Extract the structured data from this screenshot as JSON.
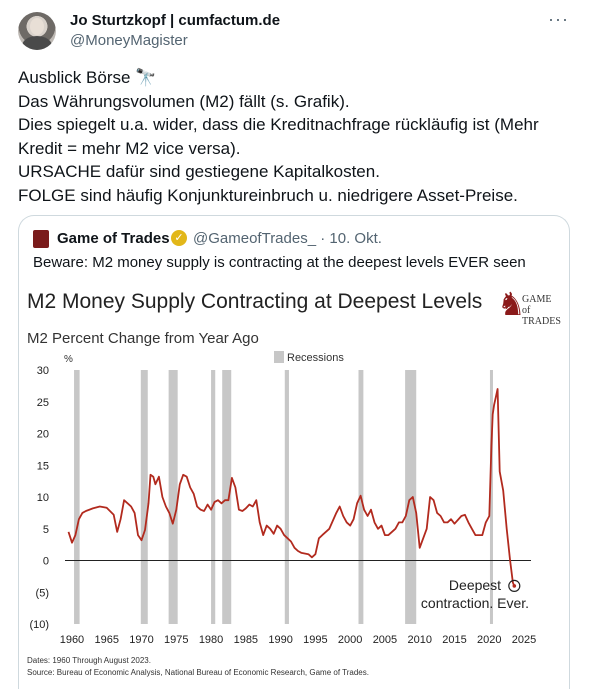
{
  "tweet": {
    "author_name": "Jo Sturtzkopf | cumfactum.de",
    "author_handle": "@MoneyMagister",
    "more_label": "···",
    "lines": [
      "Ausblick Börse 🔭",
      "Das Währungsvolumen (M2) fällt (s. Grafik).",
      "Dies spiegelt u.a. wider, dass die Kreditnachfrage rückläufig ist (Mehr",
      "Kredit = mehr M2 vice versa).",
      "URSACHE dafür sind gestiegene Kapitalkosten.",
      "FOLGE sind häufig Konjunktureinbruch u. niedrigere Asset-Preise."
    ]
  },
  "quote": {
    "name": "Game of Trades",
    "badge": "✓",
    "handle_date": "@GameofTrades_ · 10. Okt.",
    "text": "Beware: M2 money supply is contracting at the deepest levels EVER seen"
  },
  "chart_data": {
    "type": "line",
    "title": "M2 Money Supply Contracting at Deepest Levels",
    "subtitle": "M2 Percent Change from Year Ago",
    "unit_label": "%",
    "legend": "Recessions",
    "logo_text": [
      "GAME of",
      "TRADES"
    ],
    "annotation": [
      "Deepest",
      "contraction. Ever."
    ],
    "xlim": [
      1959,
      2026
    ],
    "ylim": [
      -10,
      30
    ],
    "x_ticks": [
      1960,
      1965,
      1970,
      1975,
      1980,
      1985,
      1990,
      1995,
      2000,
      2005,
      2010,
      2015,
      2020,
      2025
    ],
    "y_ticks": [
      {
        "value": 30,
        "label": "30"
      },
      {
        "value": 25,
        "label": "25"
      },
      {
        "value": 20,
        "label": "20"
      },
      {
        "value": 15,
        "label": "15"
      },
      {
        "value": 10,
        "label": "10"
      },
      {
        "value": 5,
        "label": "5"
      },
      {
        "value": 0,
        "label": "0"
      },
      {
        "value": -5,
        "label": "(5)"
      },
      {
        "value": -10,
        "label": "(10)"
      }
    ],
    "recessions": [
      [
        1960.3,
        1961.1
      ],
      [
        1969.9,
        1970.9
      ],
      [
        1973.9,
        1975.2
      ],
      [
        1980.0,
        1980.6
      ],
      [
        1981.6,
        1982.9
      ],
      [
        1990.6,
        1991.2
      ],
      [
        2001.2,
        2001.9
      ],
      [
        2007.9,
        2009.5
      ],
      [
        2020.1,
        2020.4
      ]
    ],
    "series": [
      {
        "color": "#b22a1e",
        "points": [
          [
            1959.5,
            4.5
          ],
          [
            1960.0,
            2.8
          ],
          [
            1960.5,
            4.0
          ],
          [
            1961.0,
            6.5
          ],
          [
            1961.5,
            7.5
          ],
          [
            1962.0,
            7.8
          ],
          [
            1963.0,
            8.2
          ],
          [
            1964.0,
            8.5
          ],
          [
            1965.0,
            8.3
          ],
          [
            1966.0,
            7.2
          ],
          [
            1966.5,
            4.5
          ],
          [
            1967.0,
            6.5
          ],
          [
            1967.5,
            9.5
          ],
          [
            1968.0,
            9.0
          ],
          [
            1968.5,
            8.5
          ],
          [
            1969.0,
            7.5
          ],
          [
            1969.5,
            4.0
          ],
          [
            1970.0,
            3.2
          ],
          [
            1970.5,
            4.8
          ],
          [
            1971.0,
            9.0
          ],
          [
            1971.3,
            13.5
          ],
          [
            1971.7,
            13.2
          ],
          [
            1972.0,
            12.0
          ],
          [
            1972.5,
            13.2
          ],
          [
            1973.0,
            10.0
          ],
          [
            1973.5,
            8.5
          ],
          [
            1974.0,
            7.5
          ],
          [
            1974.5,
            5.8
          ],
          [
            1975.0,
            8.0
          ],
          [
            1975.5,
            12.0
          ],
          [
            1976.0,
            13.5
          ],
          [
            1976.5,
            13.2
          ],
          [
            1977.0,
            11.5
          ],
          [
            1977.5,
            10.5
          ],
          [
            1978.0,
            8.5
          ],
          [
            1978.5,
            8.0
          ],
          [
            1979.0,
            7.8
          ],
          [
            1979.5,
            8.8
          ],
          [
            1980.0,
            8.0
          ],
          [
            1980.5,
            9.2
          ],
          [
            1981.0,
            9.5
          ],
          [
            1981.5,
            9.0
          ],
          [
            1982.0,
            9.5
          ],
          [
            1982.5,
            9.5
          ],
          [
            1983.0,
            13.0
          ],
          [
            1983.5,
            11.5
          ],
          [
            1984.0,
            8.0
          ],
          [
            1984.5,
            7.8
          ],
          [
            1985.0,
            8.2
          ],
          [
            1985.5,
            8.8
          ],
          [
            1986.0,
            8.5
          ],
          [
            1986.5,
            9.5
          ],
          [
            1987.0,
            6.0
          ],
          [
            1987.5,
            4.0
          ],
          [
            1988.0,
            5.5
          ],
          [
            1988.5,
            5.0
          ],
          [
            1989.0,
            4.2
          ],
          [
            1989.5,
            5.5
          ],
          [
            1990.0,
            5.0
          ],
          [
            1990.5,
            4.0
          ],
          [
            1991.0,
            3.5
          ],
          [
            1991.5,
            3.0
          ],
          [
            1992.0,
            2.0
          ],
          [
            1992.5,
            1.5
          ],
          [
            1993.0,
            1.2
          ],
          [
            1994.0,
            1.0
          ],
          [
            1994.5,
            0.5
          ],
          [
            1995.0,
            1.0
          ],
          [
            1995.5,
            3.5
          ],
          [
            1996.0,
            4.0
          ],
          [
            1997.0,
            5.0
          ],
          [
            1998.0,
            7.5
          ],
          [
            1998.5,
            8.5
          ],
          [
            1999.0,
            7.0
          ],
          [
            1999.5,
            6.0
          ],
          [
            2000.0,
            5.5
          ],
          [
            2000.5,
            6.5
          ],
          [
            2001.0,
            9.0
          ],
          [
            2001.5,
            10.2
          ],
          [
            2002.0,
            8.0
          ],
          [
            2002.5,
            7.0
          ],
          [
            2003.0,
            8.0
          ],
          [
            2003.5,
            6.0
          ],
          [
            2004.0,
            5.0
          ],
          [
            2004.5,
            5.5
          ],
          [
            2005.0,
            4.0
          ],
          [
            2005.5,
            4.0
          ],
          [
            2006.0,
            4.5
          ],
          [
            2006.5,
            5.0
          ],
          [
            2007.0,
            6.0
          ],
          [
            2007.5,
            6.0
          ],
          [
            2008.0,
            7.0
          ],
          [
            2008.5,
            9.5
          ],
          [
            2009.0,
            10.0
          ],
          [
            2009.5,
            7.5
          ],
          [
            2010.0,
            2.0
          ],
          [
            2010.5,
            3.5
          ],
          [
            2011.0,
            5.0
          ],
          [
            2011.5,
            10.0
          ],
          [
            2012.0,
            9.5
          ],
          [
            2012.5,
            7.5
          ],
          [
            2013.0,
            7.0
          ],
          [
            2013.5,
            6.0
          ],
          [
            2014.0,
            6.0
          ],
          [
            2014.5,
            6.5
          ],
          [
            2015.0,
            5.8
          ],
          [
            2016.0,
            7.0
          ],
          [
            2016.5,
            7.2
          ],
          [
            2017.0,
            6.0
          ],
          [
            2017.5,
            5.0
          ],
          [
            2018.0,
            4.0
          ],
          [
            2018.5,
            4.0
          ],
          [
            2019.0,
            4.0
          ],
          [
            2019.5,
            6.0
          ],
          [
            2020.0,
            7.0
          ],
          [
            2020.3,
            18.0
          ],
          [
            2020.5,
            23.0
          ],
          [
            2020.7,
            24.5
          ],
          [
            2021.0,
            26.0
          ],
          [
            2021.2,
            27.0
          ],
          [
            2021.5,
            14.0
          ],
          [
            2022.0,
            11.0
          ],
          [
            2022.5,
            5.0
          ],
          [
            2023.0,
            0.0
          ],
          [
            2023.4,
            -3.5
          ],
          [
            2023.6,
            -4.0
          ]
        ]
      }
    ],
    "footnotes": [
      "Dates: 1960 Through August 2023.",
      "Source: Bureau of Economic Analysis, National Bureau of Economic Research, Game of Trades."
    ]
  }
}
